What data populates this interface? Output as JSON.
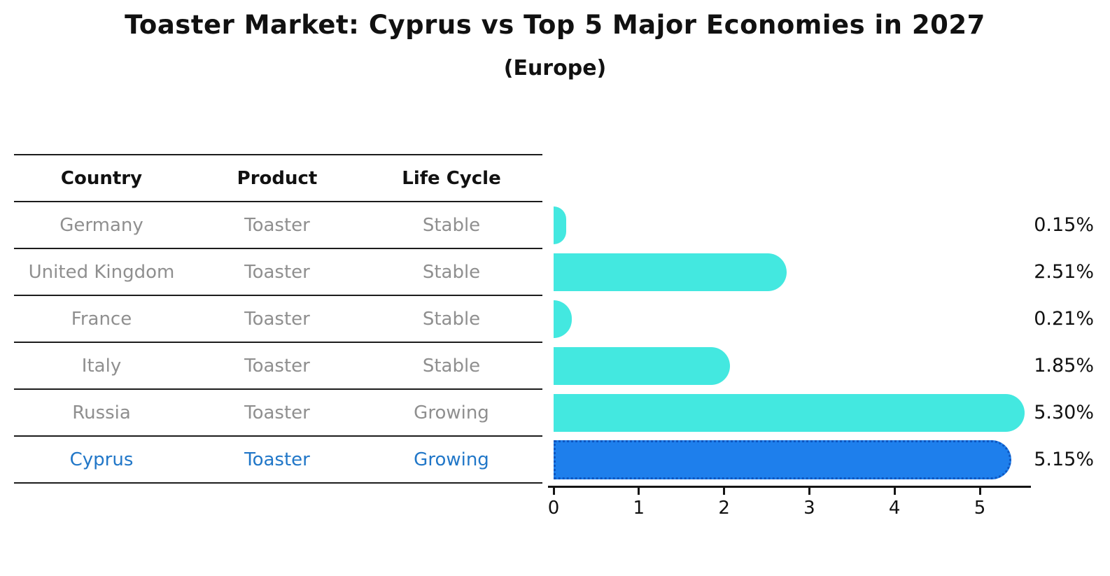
{
  "title": "Toaster Market: Cyprus vs Top 5 Major Economies in 2027",
  "subtitle": "(Europe)",
  "table": {
    "headers": [
      "Country",
      "Product",
      "Life Cycle"
    ],
    "rows": [
      {
        "country": "Germany",
        "product": "Toaster",
        "life_cycle": "Stable",
        "highlighted": false
      },
      {
        "country": "United Kingdom",
        "product": "Toaster",
        "life_cycle": "Stable",
        "highlighted": false
      },
      {
        "country": "France",
        "product": "Toaster",
        "life_cycle": "Stable",
        "highlighted": false
      },
      {
        "country": "Italy",
        "product": "Toaster",
        "life_cycle": "Stable",
        "highlighted": false
      },
      {
        "country": "Russia",
        "product": "Toaster",
        "life_cycle": "Growing",
        "highlighted": false
      },
      {
        "country": "Cyprus",
        "product": "Toaster",
        "life_cycle": "Growing",
        "highlighted": true
      }
    ]
  },
  "chart_data": {
    "type": "bar",
    "orientation": "horizontal",
    "title": "Toaster Market: Cyprus vs Top 5 Major Economies in 2027",
    "subtitle": "(Europe)",
    "categories": [
      "Germany",
      "United Kingdom",
      "France",
      "Italy",
      "Russia",
      "Cyprus"
    ],
    "values": [
      0.15,
      2.51,
      0.21,
      1.85,
      5.3,
      5.15
    ],
    "value_labels": [
      "0.15%",
      "2.51%",
      "0.21%",
      "1.85%",
      "5.30%",
      "5.15%"
    ],
    "xticks": [
      0,
      1,
      2,
      3,
      4,
      5
    ],
    "xlim": [
      0,
      5.6
    ],
    "grid": false,
    "legend": null,
    "highlight_index": 5,
    "bar_color": "#43e8e0",
    "highlight_bar_color": "#1e7fec",
    "highlight_edge_color": "#0e56c0",
    "highlight_text_color": "#2177c8",
    "body_text_color": "#8f8f8f",
    "header_text_color": "#111111"
  }
}
